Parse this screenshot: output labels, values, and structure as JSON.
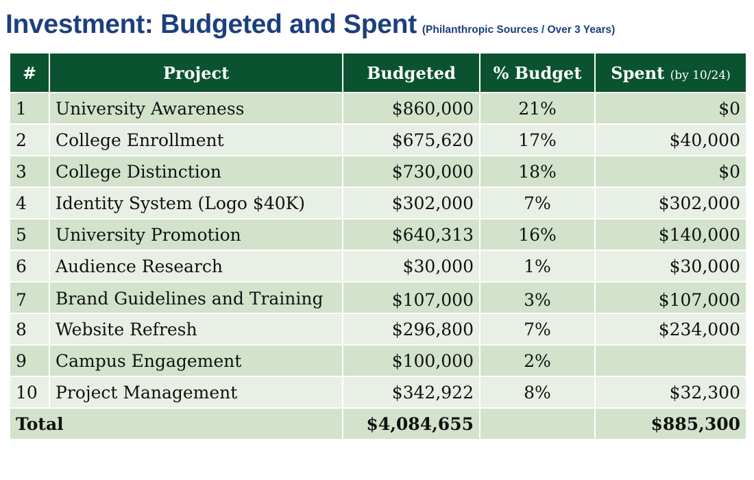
{
  "title": {
    "main": "Investment: Budgeted and Spent",
    "subtitle": "(Philanthropic Sources / Over 3 Years)"
  },
  "table": {
    "headers": {
      "num": "#",
      "project": "Project",
      "budgeted": "Budgeted",
      "pct": "% Budget",
      "spent": "Spent",
      "spent_note": "(by 10/24)"
    },
    "rows": [
      {
        "num": "1",
        "project": "University Awareness",
        "budgeted": "$860,000",
        "pct": "21%",
        "spent": "$0"
      },
      {
        "num": "2",
        "project": "College Enrollment",
        "budgeted": "$675,620",
        "pct": "17%",
        "spent": "$40,000"
      },
      {
        "num": "3",
        "project": "College Distinction",
        "budgeted": "$730,000",
        "pct": "18%",
        "spent": "$0"
      },
      {
        "num": "4",
        "project": "Identity System (Logo $40K)",
        "budgeted": "$302,000",
        "pct": "7%",
        "spent": "$302,000"
      },
      {
        "num": "5",
        "project": "University Promotion",
        "budgeted": "$640,313",
        "pct": "16%",
        "spent": "$140,000"
      },
      {
        "num": "6",
        "project": "Audience Research",
        "budgeted": "$30,000",
        "pct": "1%",
        "spent": "$30,000"
      },
      {
        "num": "7",
        "project": "Brand Guidelines and Training",
        "budgeted": "$107,000",
        "pct": "3%",
        "spent": "$107,000"
      },
      {
        "num": "8",
        "project": "Website Refresh",
        "budgeted": "$296,800",
        "pct": "7%",
        "spent": "$234,000"
      },
      {
        "num": "9",
        "project": "Campus Engagement",
        "budgeted": "$100,000",
        "pct": "2%",
        "spent": ""
      },
      {
        "num": "10",
        "project": "Project Management",
        "budgeted": "$342,922",
        "pct": "8%",
        "spent": "$32,300"
      }
    ],
    "total": {
      "label": "Total",
      "budgeted": "$4,084,655",
      "pct": "",
      "spent": "$885,300"
    }
  },
  "colors": {
    "title": "#1c3f7d",
    "header_bg": "#0b5330",
    "row_dark": "#d2e2cb",
    "row_light": "#e8efe5"
  }
}
